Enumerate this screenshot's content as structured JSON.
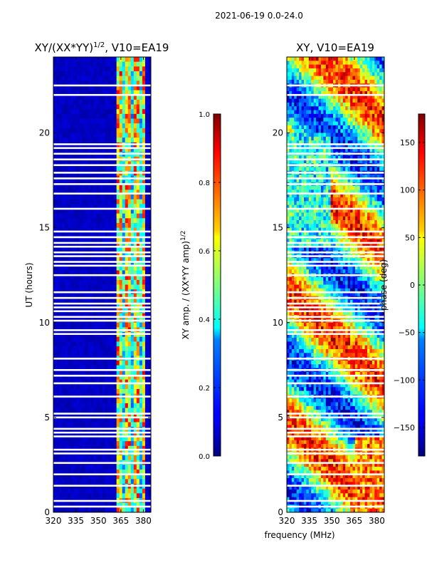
{
  "suptitle": "2021-06-19 0.0-24.0",
  "chart_data": [
    {
      "type": "heatmap",
      "title_prefix": "XY/(XX*YY)",
      "title_exp": "1/2",
      "title_suffix": ", V10=EA19",
      "xlabel": "",
      "ylabel": "UT (hours)",
      "xlim": [
        320,
        385
      ],
      "ylim": [
        0,
        24
      ],
      "xticks": [
        320,
        335,
        350,
        365,
        380
      ],
      "yticks": [
        0,
        5,
        10,
        15,
        20
      ],
      "colorbar": {
        "label_prefix": "XY amp. / (XX*YY amp)",
        "label_exp": "1/2",
        "range": [
          0.0,
          1.0
        ],
        "ticks": [
          "0.0",
          "0.2",
          "0.4",
          "0.6",
          "0.8",
          "1.0"
        ],
        "tick_values": [
          0.0,
          0.2,
          0.4,
          0.6,
          0.8,
          1.0
        ]
      },
      "notes": "Low normalized amplitude (~0.05) across 320-362 MHz; elevated amplitude (~0.3-1.0) in band 362-382 MHz; white rows are flagged data."
    },
    {
      "type": "heatmap",
      "title": "XY, V10=EA19",
      "xlabel": "frequency (MHz)",
      "ylabel": "",
      "xlim": [
        320,
        385
      ],
      "ylim": [
        0,
        24
      ],
      "xticks": [
        320,
        335,
        350,
        365,
        380
      ],
      "yticks": [
        0,
        5,
        10,
        15,
        20
      ],
      "colorbar": {
        "label": "phase (deg)",
        "range": [
          -180,
          180
        ],
        "ticks": [
          "−150",
          "−100",
          "−50",
          "0",
          "50",
          "100",
          "150"
        ],
        "tick_values": [
          -150,
          -100,
          -50,
          0,
          50,
          100,
          150
        ]
      },
      "notes": "Phase varies across the full -180..180 range; white rows are flagged data."
    }
  ]
}
